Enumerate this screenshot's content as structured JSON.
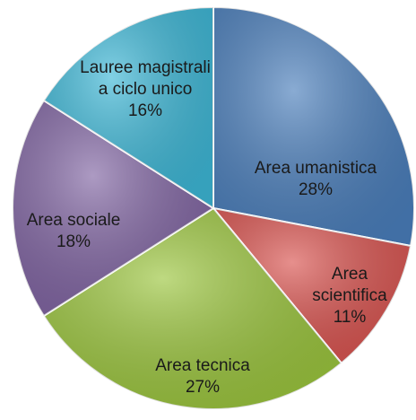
{
  "chart_data": {
    "type": "pie",
    "categories": [
      "Area umanistica",
      "Area\nscientifica",
      "Area tecnica",
      "Area sociale",
      "Lauree magistrali\na ciclo unico"
    ],
    "values": [
      28,
      11,
      27,
      18,
      16
    ],
    "value_labels": [
      "28%",
      "11%",
      "27%",
      "18%",
      "16%"
    ],
    "colors": [
      "#4a7ebb",
      "#d9534f",
      "#9bc53d",
      "#8064a2",
      "#3db7d6"
    ]
  }
}
